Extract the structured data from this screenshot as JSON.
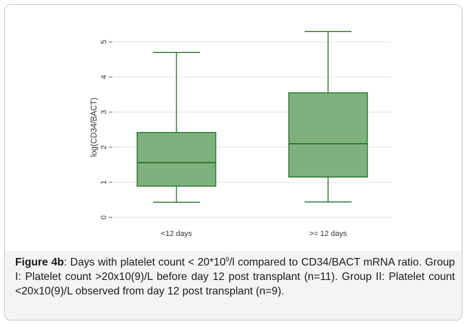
{
  "chart_data": {
    "type": "box",
    "ylabel": "log(CD34/BACT)",
    "yticks": [
      0,
      1,
      2,
      3,
      4,
      5
    ],
    "ylim": [
      -0.1,
      5.45
    ],
    "grid": true,
    "categories": [
      "<12 days",
      ">= 12 days"
    ],
    "boxes": [
      {
        "category": "<12 days",
        "whisker_low": 0.43,
        "q1": 0.89,
        "median": 1.56,
        "q3": 2.42,
        "whisker_high": 4.7
      },
      {
        "category": ">= 12 days",
        "whisker_low": 0.44,
        "q1": 1.15,
        "median": 2.1,
        "q3": 3.55,
        "whisker_high": 5.3
      }
    ],
    "colors": {
      "box_fill": "#7fb17f",
      "box_stroke": "#1f6b1f",
      "grid": "#e2e2e2"
    }
  },
  "caption": {
    "label": "Figure 4b",
    "part1": ": Days with platelet count < 20*10",
    "sup": "9",
    "part2": "/l compared to CD34/BACT mRNA ratio. Group I: Platelet count >20x10(9)/L before day 12 post transplant (n=11). Group II: Platelet count <20x10(9)/L observed from day 12 post transplant (n=9)."
  }
}
